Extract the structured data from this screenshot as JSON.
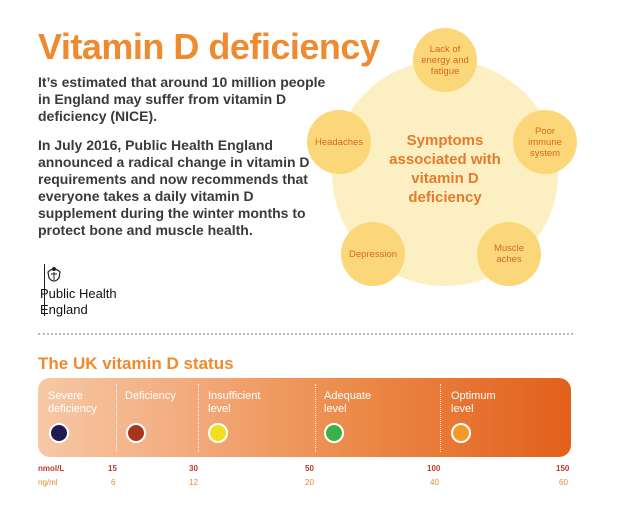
{
  "title": "Vitamin D deficiency",
  "intro": {
    "paragraph1": "It’s estimated that around 10 million people in England may suffer from vitamin D deficiency (NICE).",
    "paragraph2": "In July 2016, Public Health England announced a radical change in vitamin D requirements and now recommends that everyone takes a daily vitamin D supplement during the winter months to protect bone and muscle health."
  },
  "logo": {
    "icon": "royal-crest-icon",
    "name": "Public Health\nEngland"
  },
  "symptoms_diagram": {
    "center": "Symptoms associated with vitamin D deficiency",
    "symptoms": [
      "Lack of energy and fatigue",
      "Poor immune system",
      "Muscle aches",
      "Depression",
      "Headaches"
    ],
    "colors": {
      "outer": "#fcefc2",
      "bubbles": "#fcd77a",
      "text": "#e47b2d"
    }
  },
  "status": {
    "title": "The UK vitamin D status",
    "levels": [
      {
        "label": "Severe\ndeficiency",
        "dot_color": "#1f1a4f"
      },
      {
        "label": "Deficiency",
        "dot_color": "#a6361b"
      },
      {
        "label": "Insufficient\nlevel",
        "dot_color": "#f4e01a"
      },
      {
        "label": "Adequate\nlevel",
        "dot_color": "#3cb14a"
      },
      {
        "label": "Optimum\nlevel",
        "dot_color": "#f39a2a"
      }
    ],
    "scale": {
      "unit1": "nmol/L",
      "unit2": "ng/ml",
      "nmol": [
        "15",
        "30",
        "50",
        "100",
        "150"
      ],
      "ng": [
        "6",
        "12",
        "20",
        "40",
        "60"
      ]
    }
  }
}
